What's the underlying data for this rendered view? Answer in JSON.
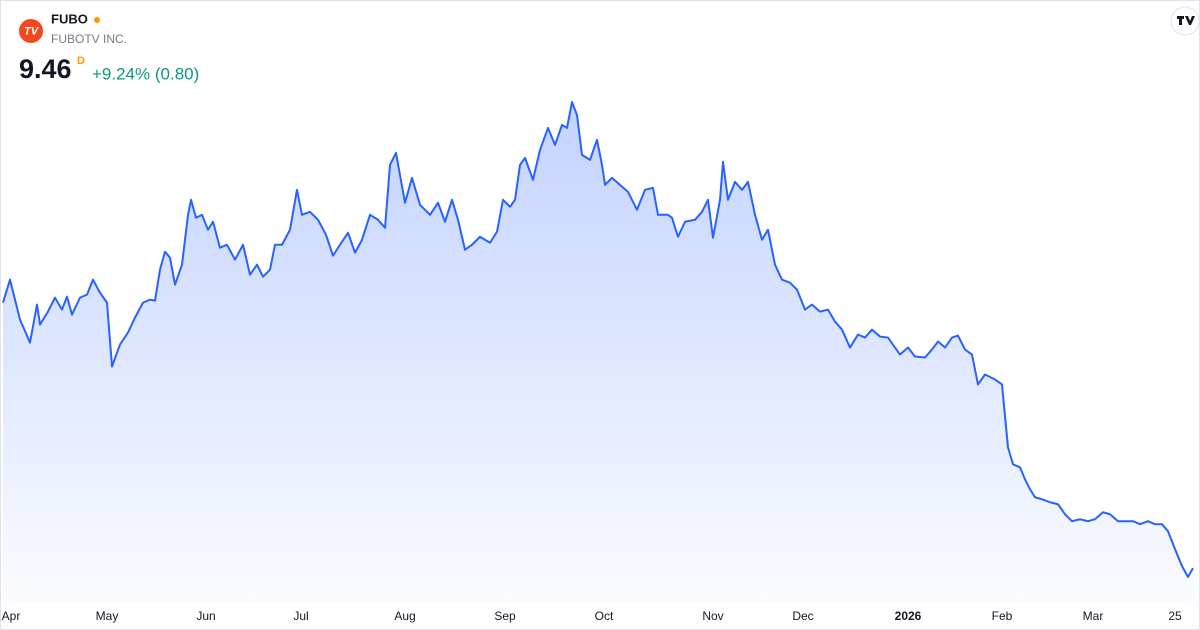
{
  "logo": "TV",
  "header": {
    "symbol": "FUBO",
    "name": "FUBOTV INC.",
    "price": "9.46",
    "interval": "D",
    "change": "+9.24% (0.80)"
  },
  "chart_data": {
    "type": "area",
    "x": [
      0,
      1.4,
      3.4,
      5.4,
      6.8,
      7.4,
      9,
      10.4,
      11.8,
      12.8,
      13.8,
      15.4,
      16.8,
      18,
      19.4,
      20.8,
      21.8,
      23.4,
      25,
      26.4,
      28,
      29.4,
      30.4,
      31.4,
      32.4,
      33.4,
      34.4,
      35.8,
      37,
      37.6,
      38.6,
      39.8,
      41,
      42,
      43.4,
      44.8,
      46.4,
      48,
      49.4,
      50.8,
      52,
      53.4,
      54.4,
      55.8,
      57.4,
      58.8,
      59.8,
      61.4,
      63,
      64.6,
      66,
      67.4,
      69,
      70.4,
      71.8,
      73.4,
      75,
      76.4,
      77.4,
      78.6,
      80.4,
      81.8,
      83.4,
      85.4,
      87,
      88.4,
      89.8,
      91,
      92.4,
      93.8,
      95.4,
      97.4,
      98.8,
      100,
      101.4,
      102.4,
      103.4,
      104.4,
      106,
      107.4,
      109,
      110.4,
      111.8,
      112.8,
      113.8,
      114.8,
      115.8,
      117.4,
      118.8,
      119.8,
      120.4,
      121.8,
      123.4,
      125,
      126.8,
      128.4,
      130,
      131,
      133,
      133.8,
      135,
      136.4,
      138.4,
      139.8,
      141,
      142,
      143.4,
      144,
      145,
      146.4,
      147.8,
      149,
      150.4,
      151.8,
      153,
      154.4,
      155.8,
      157.4,
      158.8,
      160.4,
      161.8,
      163.4,
      165,
      166.4,
      167.8,
      169.4,
      171,
      172.4,
      173.8,
      175.4,
      177,
      178.4,
      179.4,
      181,
      182.4,
      184.4,
      185.8,
      187,
      188.4,
      189.8,
      191,
      192.4,
      193.8,
      195,
      196.4,
      198.4,
      199.8,
      201,
      202,
      203.4,
      204.4,
      205.4,
      206.4,
      207.8,
      209.4,
      211,
      212.4,
      213.8,
      215.4,
      217,
      218.4,
      220,
      221.4,
      223,
      224.4,
      226,
      227.4,
      229,
      230.4,
      231.8,
      233,
      234.4,
      235.8,
      237,
      238
    ],
    "series": [
      {
        "name": "FUBO",
        "color": "#2962ff",
        "values": [
          33.4,
          35.47,
          31.87,
          29.8,
          33.22,
          31.42,
          32.59,
          33.85,
          32.77,
          33.94,
          32.32,
          33.85,
          34.12,
          35.47,
          34.3,
          33.4,
          27.64,
          29.62,
          30.7,
          32.05,
          33.4,
          33.67,
          33.58,
          36.37,
          37.99,
          37.45,
          35.02,
          36.82,
          41.32,
          42.67,
          41.05,
          41.32,
          39.97,
          40.69,
          38.35,
          38.62,
          37.27,
          38.62,
          35.92,
          36.82,
          35.74,
          36.37,
          38.62,
          38.62,
          39.97,
          43.57,
          41.32,
          41.59,
          40.87,
          39.52,
          37.63,
          38.62,
          39.7,
          37.9,
          39.07,
          41.32,
          40.87,
          40.15,
          45.82,
          46.9,
          42.4,
          44.65,
          42.22,
          41.32,
          42.4,
          40.69,
          42.67,
          40.87,
          38.17,
          38.62,
          39.34,
          38.8,
          39.79,
          42.67,
          42.04,
          42.67,
          45.82,
          46.45,
          44.47,
          47.17,
          49.15,
          47.62,
          49.42,
          49.15,
          51.49,
          50.32,
          46.72,
          46.27,
          48.07,
          45.82,
          44.02,
          44.65,
          44.02,
          43.39,
          41.77,
          43.57,
          43.75,
          41.32,
          41.32,
          41.05,
          39.34,
          40.69,
          40.87,
          41.59,
          42.67,
          39.25,
          42.67,
          46.09,
          42.67,
          44.29,
          43.57,
          44.29,
          41.32,
          39.07,
          39.97,
          36.82,
          35.47,
          35.2,
          34.57,
          32.77,
          33.22,
          32.59,
          32.77,
          31.69,
          30.97,
          29.35,
          30.52,
          30.25,
          30.97,
          30.34,
          30.25,
          29.35,
          28.72,
          29.35,
          28.54,
          28.45,
          29.17,
          29.89,
          29.35,
          30.25,
          30.43,
          29.17,
          28.72,
          26.02,
          26.92,
          26.47,
          26.02,
          20.35,
          18.82,
          18.55,
          17.47,
          16.57,
          15.85,
          15.67,
          15.4,
          15.22,
          14.32,
          13.69,
          13.87,
          13.69,
          13.87,
          14.5,
          14.32,
          13.69,
          13.69,
          13.69,
          13.42,
          13.69,
          13.42,
          13.42,
          12.79,
          11.17,
          9.64,
          8.66,
          9.46
        ]
      }
    ],
    "xlim": [
      0,
      238
    ],
    "xticks": [
      {
        "value": 1.6,
        "label": "Apr"
      },
      {
        "value": 20.8,
        "label": "May"
      },
      {
        "value": 40.6,
        "label": "Jun"
      },
      {
        "value": 59.6,
        "label": "Jul"
      },
      {
        "value": 80.4,
        "label": "Aug"
      },
      {
        "value": 100.4,
        "label": "Sep"
      },
      {
        "value": 120.2,
        "label": "Oct"
      },
      {
        "value": 142,
        "label": "Nov"
      },
      {
        "value": 160,
        "label": "Dec"
      },
      {
        "value": 181,
        "label": "2026"
      },
      {
        "value": 199.8,
        "label": "Feb"
      },
      {
        "value": 218,
        "label": "Mar"
      },
      {
        "value": 234.4,
        "label": "25"
      }
    ]
  }
}
